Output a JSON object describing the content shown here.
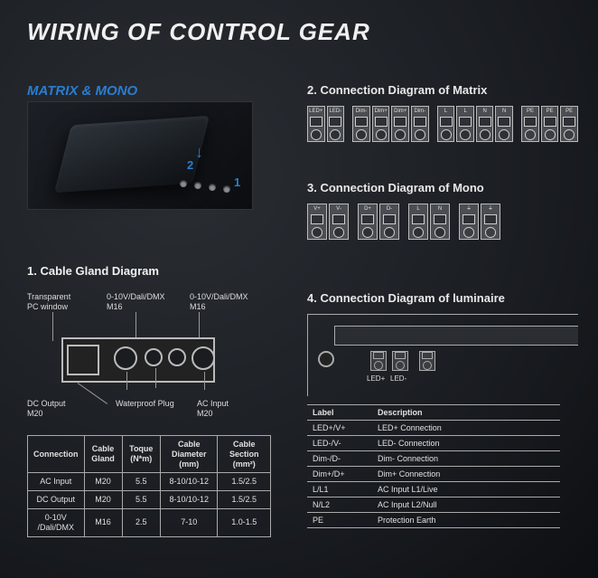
{
  "title": "WIRING OF CONTROL GEAR",
  "subtitle": "MATRIX & MONO",
  "colors": {
    "accent": "#2a7dd0",
    "text": "#e8e8e8",
    "border": "#aaaaaa",
    "panel": "#4a4d52"
  },
  "photo": {
    "marker1": "1",
    "marker2": "2"
  },
  "section1": {
    "heading": "1. Cable Gland Diagram",
    "labels": {
      "pc_window": "Transparent\nPC window",
      "dali_left": "0-10V/Dali/DMX\nM16",
      "dali_right": "0-10V/Dali/DMX\nM16",
      "dc_output": "DC Output\nM20",
      "waterproof": "Waterproof Plug",
      "ac_input": "AC Input\nM20"
    },
    "table": {
      "columns": [
        "Connection",
        "Cable Gland",
        "Toque (N*m)",
        "Cable Diameter (mm)",
        "Cable Section (mm²)"
      ],
      "rows": [
        [
          "AC Input",
          "M20",
          "5.5",
          "8-10/10-12",
          "1.5/2.5"
        ],
        [
          "DC Output",
          "M20",
          "5.5",
          "8-10/10-12",
          "1.5/2.5"
        ],
        [
          "0-10V /Dali/DMX",
          "M16",
          "2.5",
          "7-10",
          "1.0-1.5"
        ]
      ]
    }
  },
  "section2": {
    "heading": "2. Connection Diagram of Matrix",
    "groups": [
      [
        "LED+",
        "LED-"
      ],
      [
        "Dim-",
        "Dim+",
        "Dim+",
        "Dim-"
      ],
      [
        "L",
        "L",
        "N",
        "N"
      ],
      [
        "PE",
        "PE",
        "PE"
      ]
    ]
  },
  "section3": {
    "heading": "3. Connection Diagram of Mono",
    "groups": [
      [
        "V+",
        "V-"
      ],
      [
        "D+",
        "D-"
      ],
      [
        "L",
        "N"
      ],
      [
        "⏚",
        "⏚"
      ]
    ]
  },
  "section4": {
    "heading": "4. Connection Diagram of luminaire",
    "lum_labels": {
      "ledp": "LED+",
      "ledm": "LED-"
    },
    "table": {
      "columns": [
        "Label",
        "Description"
      ],
      "rows": [
        [
          "LED+/V+",
          "LED+ Connection"
        ],
        [
          "LED-/V-",
          "LED- Connection"
        ],
        [
          "Dim-/D-",
          "Dim- Connection"
        ],
        [
          "Dim+/D+",
          "Dim+ Connection"
        ],
        [
          "L/L1",
          "AC Input L1/Live"
        ],
        [
          "N/L2",
          "AC Input L2/Null"
        ],
        [
          "PE",
          "Protection Earth"
        ]
      ]
    }
  }
}
